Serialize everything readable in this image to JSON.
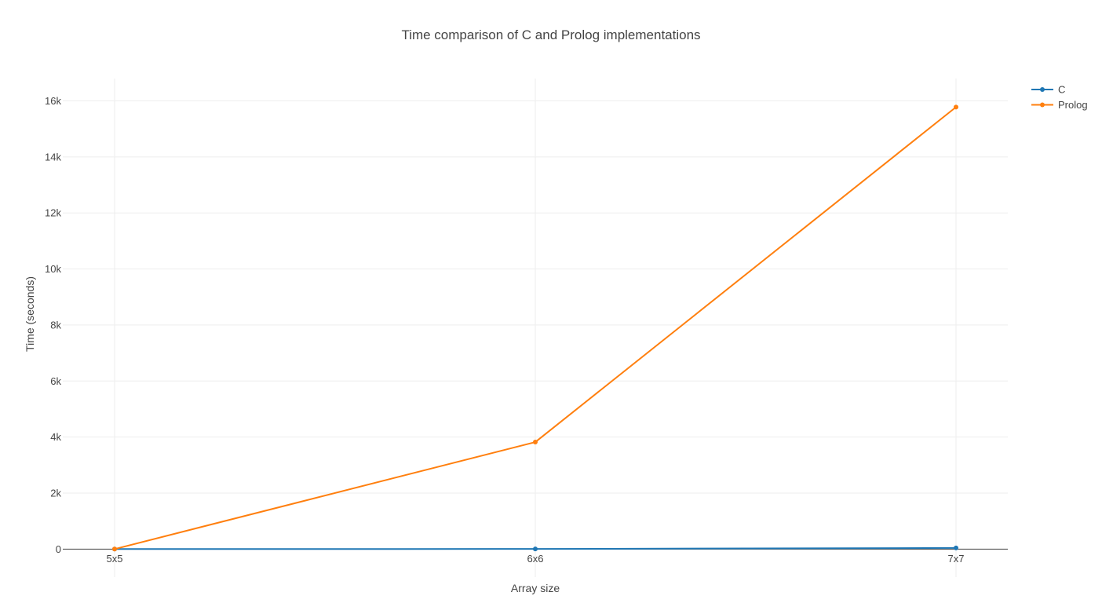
{
  "chart_data": {
    "type": "line",
    "title": "Time comparison of C and Prolog implementations",
    "xlabel": "Array size",
    "ylabel": "Time (seconds)",
    "categories": [
      "5x5",
      "6x6",
      "7x7"
    ],
    "y_ticks": [
      0,
      2000,
      4000,
      6000,
      8000,
      10000,
      12000,
      14000,
      16000
    ],
    "y_tick_labels": [
      "0",
      "2k",
      "4k",
      "6k",
      "8k",
      "10k",
      "12k",
      "14k",
      "16k"
    ],
    "ylim": [
      -1000,
      16800
    ],
    "grid": true,
    "legend_position": "top-right",
    "series": [
      {
        "name": "C",
        "color": "#1f77b4",
        "values": [
          0.5,
          5,
          40
        ]
      },
      {
        "name": "Prolog",
        "color": "#ff7f0e",
        "values": [
          1,
          3820,
          15780
        ]
      }
    ]
  }
}
